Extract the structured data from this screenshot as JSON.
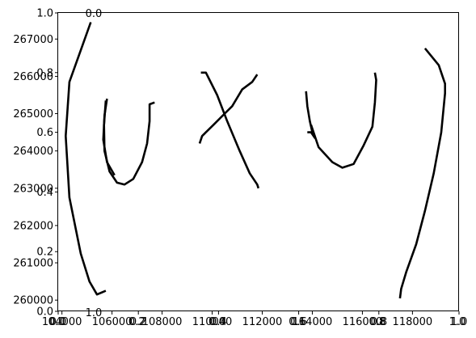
{
  "chart_data": {
    "type": "line",
    "title": "",
    "xlabel": "",
    "ylabel": "",
    "xlim": [
      103850,
      119860
    ],
    "ylim": [
      259700,
      267700
    ],
    "axes_overlay": {
      "xlim": [
        0.0,
        1.0
      ],
      "ylim": [
        0.0,
        1.0
      ],
      "x_ticks": [
        "0.0",
        "0.2",
        "0.4",
        "0.6",
        "0.8",
        "1.0"
      ],
      "y_ticks": [
        "0.0",
        "0.2",
        "0.4",
        "0.6",
        "0.8",
        "1.0"
      ],
      "x_ticks_inner": [
        "0.0",
        "0.2",
        "0.4",
        "0.6",
        "0.8",
        "1.0"
      ],
      "y_ticks_inner": [
        "0.0",
        "0.2",
        "0.4",
        "0.6",
        "0.8",
        "1.0"
      ],
      "stray_labels": [
        "0.0",
        "1.0"
      ]
    },
    "x_ticks": [
      "104000",
      "106000",
      "108000",
      "110000",
      "112000",
      "114000",
      "116000",
      "118000"
    ],
    "y_ticks": [
      "260000",
      "261000",
      "262000",
      "263000",
      "264000",
      "265000",
      "266000",
      "267000"
    ],
    "grid": false,
    "series": [
      {
        "points": [
          [
            105150,
            267450
          ],
          [
            104700,
            266600
          ],
          [
            104300,
            265850
          ],
          [
            104150,
            264400
          ],
          [
            104300,
            262750
          ],
          [
            104750,
            261250
          ],
          [
            105100,
            260500
          ],
          [
            105400,
            260150
          ],
          [
            105750,
            260250
          ]
        ]
      },
      {
        "points": [
          [
            105800,
            265400
          ],
          [
            105700,
            264950
          ],
          [
            105650,
            264300
          ],
          [
            105800,
            263700
          ],
          [
            106100,
            263350
          ]
        ]
      },
      {
        "points": [
          [
            105750,
            265350
          ],
          [
            105680,
            264700
          ],
          [
            105700,
            264000
          ],
          [
            105900,
            263450
          ],
          [
            106200,
            263150
          ],
          [
            106500,
            263100
          ],
          [
            106850,
            263250
          ],
          [
            107200,
            263700
          ],
          [
            107400,
            264200
          ],
          [
            107500,
            264800
          ],
          [
            107500,
            265250
          ],
          [
            107700,
            265300
          ]
        ]
      },
      {
        "points": [
          [
            109550,
            266100
          ],
          [
            109750,
            266100
          ],
          [
            110200,
            265500
          ],
          [
            110600,
            264800
          ],
          [
            111100,
            264000
          ],
          [
            111500,
            263400
          ],
          [
            111800,
            263100
          ],
          [
            111850,
            263000
          ]
        ]
      },
      {
        "points": [
          [
            109500,
            264200
          ],
          [
            109600,
            264400
          ],
          [
            110050,
            264700
          ],
          [
            110500,
            265000
          ],
          [
            110800,
            265200
          ],
          [
            111200,
            265650
          ],
          [
            111600,
            265850
          ],
          [
            111800,
            266050
          ]
        ]
      },
      {
        "points": [
          [
            113750,
            265600
          ],
          [
            113800,
            265200
          ],
          [
            113900,
            264800
          ],
          [
            114000,
            264500
          ],
          [
            114100,
            264350
          ],
          [
            113950,
            264500
          ],
          [
            113800,
            264500
          ]
        ]
      },
      {
        "points": [
          [
            113950,
            264700
          ],
          [
            114250,
            264100
          ],
          [
            114800,
            263700
          ],
          [
            115200,
            263550
          ],
          [
            115650,
            263650
          ],
          [
            116050,
            264150
          ],
          [
            116400,
            264650
          ],
          [
            116500,
            265300
          ],
          [
            116550,
            265900
          ],
          [
            116500,
            266100
          ]
        ]
      },
      {
        "points": [
          [
            117500,
            260050
          ],
          [
            117550,
            260300
          ],
          [
            117750,
            260750
          ],
          [
            118150,
            261500
          ],
          [
            118500,
            262400
          ],
          [
            118850,
            263400
          ],
          [
            119150,
            264500
          ],
          [
            119300,
            265550
          ],
          [
            119300,
            265800
          ],
          [
            119050,
            266300
          ],
          [
            118500,
            266750
          ]
        ]
      }
    ]
  }
}
